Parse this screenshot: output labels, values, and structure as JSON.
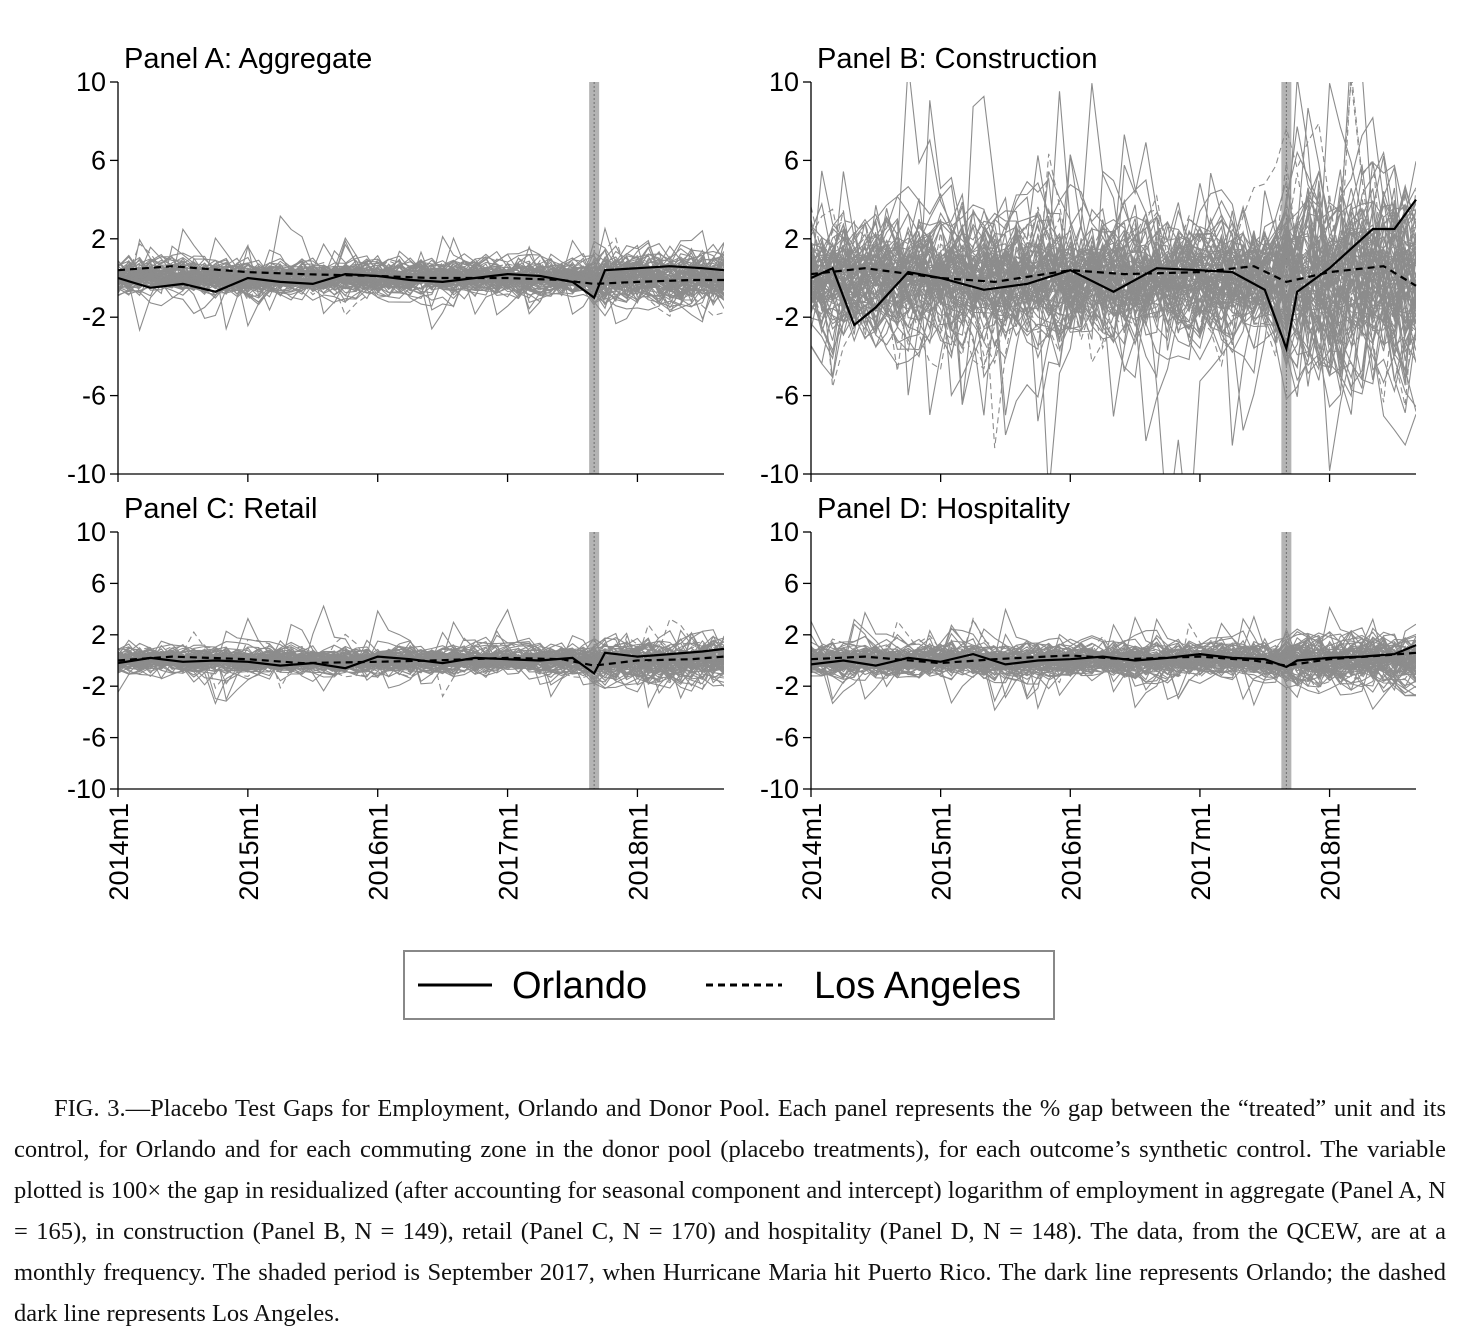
{
  "chart_data": [
    {
      "type": "line",
      "title": "Panel A: Aggregate",
      "xlabel": "",
      "ylabel": "",
      "x_ticks": [
        "2014m1",
        "2015m1",
        "2016m1",
        "2017m1",
        "2018m1"
      ],
      "y_ticks": [
        "10",
        "6",
        "2",
        "-2",
        "-6",
        "-10"
      ],
      "ylim": [
        -10,
        10
      ],
      "x_range": [
        "2014m1",
        "2018m9"
      ],
      "shaded_period": "2017m9",
      "donor_pool_size": 165,
      "spread": 1.0,
      "series": [
        {
          "name": "Orlando",
          "style": "solid",
          "color": "#000000",
          "x": [
            "2014m1",
            "2014m4",
            "2014m7",
            "2014m10",
            "2015m1",
            "2015m4",
            "2015m7",
            "2015m10",
            "2016m1",
            "2016m4",
            "2016m7",
            "2016m10",
            "2017m1",
            "2017m4",
            "2017m7",
            "2017m9",
            "2017m10",
            "2018m1",
            "2018m4",
            "2018m7",
            "2018m9"
          ],
          "values": [
            0.0,
            -0.5,
            -0.3,
            -0.7,
            0.0,
            -0.2,
            -0.3,
            0.2,
            0.1,
            -0.1,
            -0.2,
            0.0,
            0.2,
            0.1,
            -0.2,
            -1.0,
            0.4,
            0.5,
            0.6,
            0.5,
            0.4
          ]
        },
        {
          "name": "Los Angeles",
          "style": "dashed",
          "color": "#000000",
          "x": [
            "2014m1",
            "2014m6",
            "2015m1",
            "2015m6",
            "2016m1",
            "2016m6",
            "2017m1",
            "2017m6",
            "2017m9",
            "2018m1",
            "2018m6",
            "2018m9"
          ],
          "values": [
            0.4,
            0.6,
            0.3,
            0.2,
            0.1,
            0.0,
            0.0,
            -0.1,
            -0.3,
            -0.2,
            -0.1,
            -0.1
          ]
        }
      ]
    },
    {
      "type": "line",
      "title": "Panel B: Construction",
      "xlabel": "",
      "ylabel": "",
      "x_ticks": [
        "2014m1",
        "2015m1",
        "2016m1",
        "2017m1",
        "2018m1"
      ],
      "y_ticks": [
        "10",
        "6",
        "2",
        "-2",
        "-6",
        "-10"
      ],
      "ylim": [
        -10,
        10
      ],
      "x_range": [
        "2014m1",
        "2018m9"
      ],
      "shaded_period": "2017m9",
      "donor_pool_size": 149,
      "spread": 3.6,
      "series": [
        {
          "name": "Orlando",
          "style": "solid",
          "color": "#000000",
          "x": [
            "2014m1",
            "2014m3",
            "2014m5",
            "2014m7",
            "2014m10",
            "2015m1",
            "2015m5",
            "2015m9",
            "2016m1",
            "2016m5",
            "2016m9",
            "2017m1",
            "2017m4",
            "2017m7",
            "2017m9",
            "2017m10",
            "2018m1",
            "2018m3",
            "2018m5",
            "2018m7",
            "2018m9"
          ],
          "values": [
            0.0,
            0.5,
            -2.4,
            -1.5,
            0.3,
            0.0,
            -0.6,
            -0.3,
            0.4,
            -0.7,
            0.5,
            0.4,
            0.3,
            -0.6,
            -3.6,
            -0.7,
            0.5,
            1.5,
            2.5,
            2.5,
            4.0
          ]
        },
        {
          "name": "Los Angeles",
          "style": "dashed",
          "color": "#000000",
          "x": [
            "2014m1",
            "2014m6",
            "2015m1",
            "2015m6",
            "2016m1",
            "2016m6",
            "2017m1",
            "2017m6",
            "2017m9",
            "2018m1",
            "2018m6",
            "2018m9"
          ],
          "values": [
            0.2,
            0.5,
            0.0,
            -0.2,
            0.4,
            0.2,
            0.3,
            0.6,
            -0.2,
            0.3,
            0.6,
            -0.4
          ]
        }
      ]
    },
    {
      "type": "line",
      "title": "Panel C: Retail",
      "xlabel": "",
      "ylabel": "",
      "x_ticks": [
        "2014m1",
        "2015m1",
        "2016m1",
        "2017m1",
        "2018m1"
      ],
      "y_ticks": [
        "10",
        "6",
        "2",
        "-2",
        "-6",
        "-10"
      ],
      "ylim": [
        -10,
        10
      ],
      "x_range": [
        "2014m1",
        "2018m9"
      ],
      "shaded_period": "2017m9",
      "donor_pool_size": 170,
      "spread": 1.2,
      "series": [
        {
          "name": "Orlando",
          "style": "solid",
          "color": "#000000",
          "x": [
            "2014m1",
            "2014m4",
            "2014m7",
            "2014m10",
            "2015m1",
            "2015m4",
            "2015m7",
            "2015m10",
            "2016m1",
            "2016m4",
            "2016m7",
            "2016m10",
            "2017m1",
            "2017m4",
            "2017m7",
            "2017m9",
            "2017m10",
            "2018m1",
            "2018m4",
            "2018m7",
            "2018m9"
          ],
          "values": [
            -0.2,
            0.2,
            -0.1,
            0.0,
            -0.1,
            -0.4,
            -0.2,
            -0.6,
            0.3,
            0.1,
            -0.2,
            0.2,
            0.1,
            0.0,
            0.2,
            -1.0,
            0.6,
            0.3,
            0.5,
            0.7,
            0.9
          ]
        },
        {
          "name": "Los Angeles",
          "style": "dashed",
          "color": "#000000",
          "x": [
            "2014m1",
            "2014m6",
            "2015m1",
            "2015m6",
            "2016m1",
            "2016m6",
            "2017m1",
            "2017m6",
            "2017m9",
            "2018m1",
            "2018m6",
            "2018m9"
          ],
          "values": [
            0.0,
            0.3,
            0.1,
            -0.2,
            -0.1,
            0.0,
            0.2,
            0.1,
            -0.4,
            0.0,
            0.1,
            0.3
          ]
        }
      ]
    },
    {
      "type": "line",
      "title": "Panel D: Hospitality",
      "xlabel": "",
      "ylabel": "",
      "x_ticks": [
        "2014m1",
        "2015m1",
        "2016m1",
        "2017m1",
        "2018m1"
      ],
      "y_ticks": [
        "10",
        "6",
        "2",
        "-2",
        "-6",
        "-10"
      ],
      "ylim": [
        -10,
        10
      ],
      "x_range": [
        "2014m1",
        "2018m9"
      ],
      "shaded_period": "2017m9",
      "donor_pool_size": 148,
      "spread": 1.5,
      "series": [
        {
          "name": "Orlando",
          "style": "solid",
          "color": "#000000",
          "x": [
            "2014m1",
            "2014m4",
            "2014m7",
            "2014m10",
            "2015m1",
            "2015m4",
            "2015m7",
            "2015m10",
            "2016m1",
            "2016m4",
            "2016m7",
            "2016m10",
            "2017m1",
            "2017m4",
            "2017m7",
            "2017m9",
            "2017m10",
            "2018m1",
            "2018m4",
            "2018m7",
            "2018m9"
          ],
          "values": [
            -0.3,
            0.0,
            -0.4,
            0.2,
            -0.1,
            0.5,
            -0.3,
            0.0,
            0.1,
            0.3,
            0.0,
            0.2,
            0.5,
            0.2,
            0.1,
            -0.5,
            0.0,
            0.2,
            0.3,
            0.5,
            1.2
          ]
        },
        {
          "name": "Los Angeles",
          "style": "dashed",
          "color": "#000000",
          "x": [
            "2014m1",
            "2014m6",
            "2015m1",
            "2015m6",
            "2016m1",
            "2016m6",
            "2017m1",
            "2017m6",
            "2017m9",
            "2018m1",
            "2018m6",
            "2018m9"
          ],
          "values": [
            0.1,
            0.3,
            -0.2,
            0.1,
            0.4,
            0.1,
            0.3,
            0.0,
            -0.4,
            0.1,
            0.4,
            0.6
          ]
        }
      ]
    }
  ],
  "legend": {
    "placement": "bottom-center",
    "entries": [
      {
        "label": "Orlando",
        "style": "solid"
      },
      {
        "label": "Los Angeles",
        "style": "dashed"
      }
    ]
  },
  "colors": {
    "donor_pool": "#8c8c8c",
    "shade": "#b4b4b4",
    "highlight": "#000000"
  },
  "caption": "FIG. 3.—Placebo Test Gaps for Employment, Orlando and Donor Pool. Each panel represents the % gap between the “treated” unit and its control, for Orlando and for each commuting zone in the donor pool (placebo treatments), for each outcome’s synthetic control. The variable plotted is 100× the gap in residualized (after accounting for seasonal component and intercept) logarithm of employment in aggregate (Panel A, N = 165), in construction (Panel B, N = 149), retail (Panel C, N = 170) and hospitality (Panel D, N = 148). The data, from the QCEW, are at a monthly frequency. The shaded period is September 2017, when Hurricane Maria hit Puerto Rico. The dark line represents Orlando; the dashed dark line represents Los Angeles."
}
